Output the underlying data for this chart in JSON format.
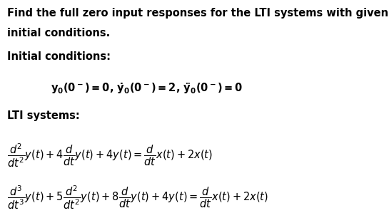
{
  "bg_color": "#ffffff",
  "text_color": "#000000",
  "figsize": [
    5.45,
    3.13
  ],
  "dpi": 100,
  "line1": "Find the full zero input responses for the LTI systems with given",
  "line2": "initial conditions.",
  "section1": "Initial conditions:",
  "section2": "LTI systems:"
}
